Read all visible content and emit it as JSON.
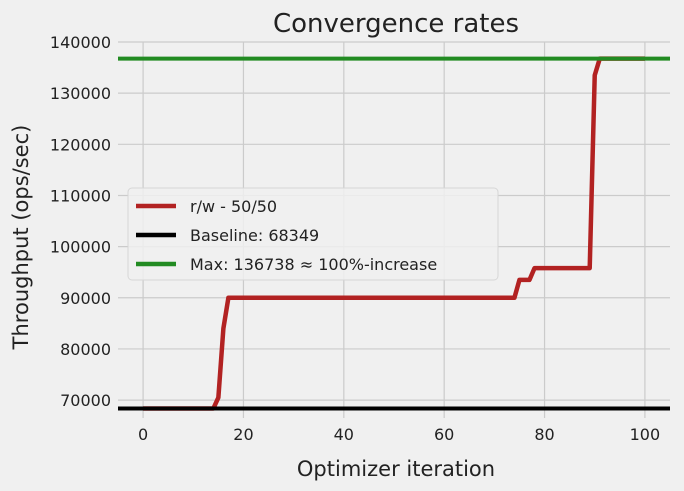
{
  "chart_data": {
    "type": "line",
    "title": "Convergence rates",
    "xlabel": "Optimizer iteration",
    "ylabel": "Throughput (ops/sec)",
    "xlim": [
      -5,
      105
    ],
    "ylim": [
      66500,
      140000
    ],
    "xticks": [
      0,
      20,
      40,
      60,
      80,
      100
    ],
    "yticks": [
      70000,
      80000,
      90000,
      100000,
      110000,
      120000,
      130000,
      140000
    ],
    "grid": true,
    "legend_position": "center-left",
    "series": [
      {
        "name": "r/w - 50/50",
        "kind": "line",
        "color": "#b22222",
        "x": [
          0,
          14,
          15,
          16,
          17,
          18,
          73,
          74,
          75,
          76,
          77,
          78,
          88,
          89,
          90,
          91,
          100
        ],
        "y": [
          68349,
          68349,
          70500,
          84000,
          90000,
          90000,
          90000,
          90000,
          93500,
          93500,
          93500,
          95800,
          95800,
          95800,
          133500,
          136738,
          136738
        ]
      },
      {
        "name": "Baseline: 68349",
        "kind": "hline",
        "color": "#000000",
        "y": 68349
      },
      {
        "name": "Max: 136738 ≈ 100%-increase",
        "kind": "hline",
        "color": "#228b22",
        "y": 136738
      }
    ]
  }
}
